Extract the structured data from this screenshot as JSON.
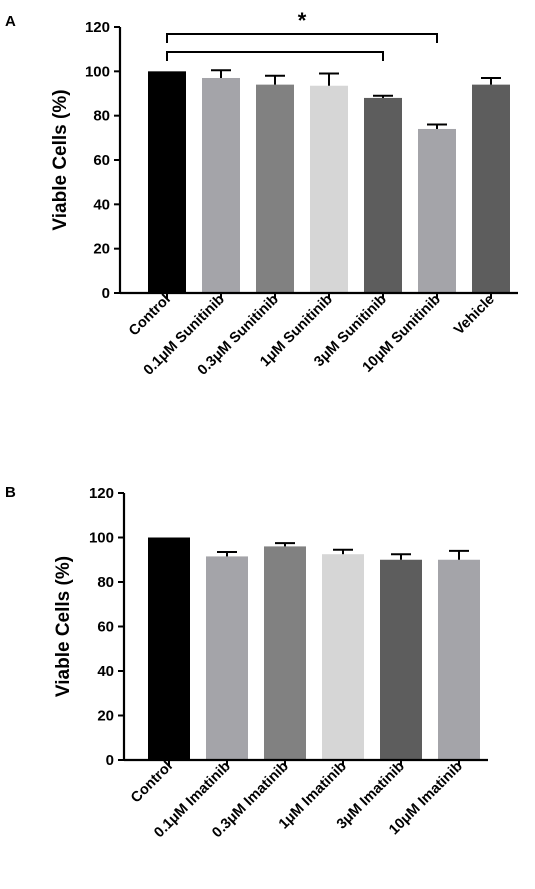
{
  "chart_data": [
    {
      "type": "bar",
      "panel_label": "A",
      "ylabel": "Viable Cells (%)",
      "ylim": [
        0,
        120
      ],
      "yticks": [
        "0",
        "20",
        "40",
        "60",
        "80",
        "100",
        "120"
      ],
      "categories": [
        "Control",
        "0.1μM Sunitinib",
        "0.3μM Sunitinib",
        "1μM Sunitinib",
        "3μM Sunitinib",
        "10μM Sunitinib",
        "Vehicle"
      ],
      "values": [
        100,
        97,
        94,
        93.5,
        88,
        74,
        94
      ],
      "errors": [
        0,
        3.5,
        4,
        5.5,
        1,
        2,
        3
      ],
      "colors": [
        "#000000",
        "#a4a4a9",
        "#818181",
        "#d6d6d6",
        "#5d5d5d",
        "#a4a4a9",
        "#5d5d5d"
      ],
      "significance": {
        "symbol": "*",
        "brackets": [
          {
            "from": "Control",
            "to": "3μM Sunitinib"
          },
          {
            "from": "Control",
            "to": "10μM Sunitinib"
          }
        ]
      }
    },
    {
      "type": "bar",
      "panel_label": "B",
      "ylabel": "Viable Cells (%)",
      "ylim": [
        0,
        120
      ],
      "yticks": [
        "0",
        "20",
        "40",
        "60",
        "80",
        "100",
        "120"
      ],
      "categories": [
        "Control",
        "0.1μM Imatinib",
        "0.3μM Imatinib",
        "1μM Imatinib",
        "3μM Imatinib",
        "10μM Imatinib"
      ],
      "values": [
        100,
        91.5,
        96,
        92.5,
        90,
        90
      ],
      "errors": [
        0,
        2,
        1.5,
        2,
        2.5,
        4
      ],
      "colors": [
        "#000000",
        "#a4a4a9",
        "#818181",
        "#d6d6d6",
        "#5d5d5d",
        "#a4a4a9"
      ]
    }
  ]
}
